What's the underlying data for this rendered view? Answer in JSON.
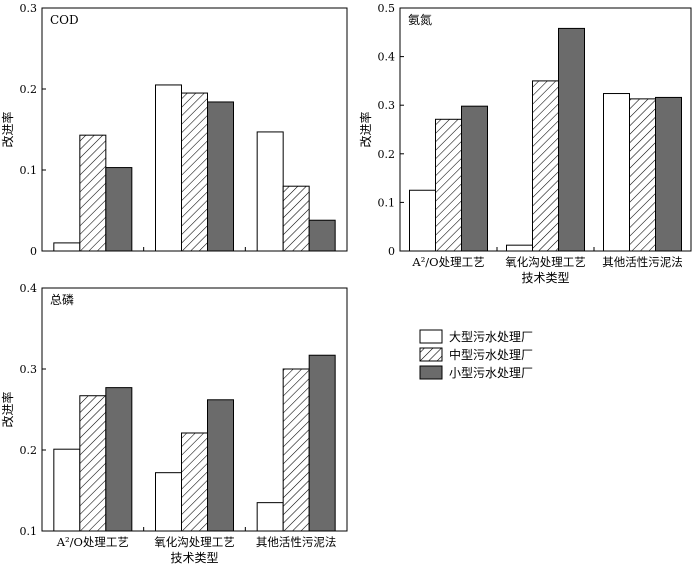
{
  "chart_data": [
    {
      "type": "bar",
      "title": "COD",
      "ylabel": "改进率",
      "xlabel": "",
      "ylim": [
        0,
        0.3
      ],
      "yticks": [
        "0",
        "0.1",
        "0.2",
        "0.3"
      ],
      "categories": [
        "",
        "",
        ""
      ],
      "series": [
        {
          "name": "大型污水处理厂",
          "values": [
            0.01,
            0.205,
            0.147
          ]
        },
        {
          "name": "中型污水处理厂",
          "values": [
            0.143,
            0.195,
            0.08
          ]
        },
        {
          "name": "小型污水处理厂",
          "values": [
            0.103,
            0.184,
            0.038
          ]
        }
      ]
    },
    {
      "type": "bar",
      "title": "氨氮",
      "ylabel": "改进率",
      "xlabel": "技术类型",
      "ylim": [
        0,
        0.5
      ],
      "yticks": [
        "0",
        "0.1",
        "0.2",
        "0.3",
        "0.4",
        "0.5"
      ],
      "categories": [
        "A²/O处理工艺",
        "氧化沟处理工艺",
        "其他活性污泥法"
      ],
      "series": [
        {
          "name": "大型污水处理厂",
          "values": [
            0.125,
            0.012,
            0.324
          ]
        },
        {
          "name": "中型污水处理厂",
          "values": [
            0.271,
            0.35,
            0.313
          ]
        },
        {
          "name": "小型污水处理厂",
          "values": [
            0.298,
            0.458,
            0.316
          ]
        }
      ]
    },
    {
      "type": "bar",
      "title": "总磷",
      "ylabel": "改进率",
      "xlabel": "技术类型",
      "ylim": [
        0.1,
        0.4
      ],
      "yticks": [
        "0.1",
        "0.2",
        "0.3",
        "0.4"
      ],
      "categories": [
        "A²/O处理工艺",
        "氧化沟处理工艺",
        "其他活性污泥法"
      ],
      "series": [
        {
          "name": "大型污水处理厂",
          "values": [
            0.201,
            0.172,
            0.135
          ]
        },
        {
          "name": "中型污水处理厂",
          "values": [
            0.267,
            0.221,
            0.3
          ]
        },
        {
          "name": "小型污水处理厂",
          "values": [
            0.277,
            0.262,
            0.317
          ]
        }
      ]
    }
  ],
  "legend": {
    "items": [
      "大型污水处理厂",
      "中型污水处理厂",
      "小型污水处理厂"
    ],
    "placement": "bottom-right"
  },
  "colors": {
    "large": "#ffffff",
    "medium_hatch": "#000000",
    "small": "#6b6b6b",
    "axis": "#000000"
  }
}
